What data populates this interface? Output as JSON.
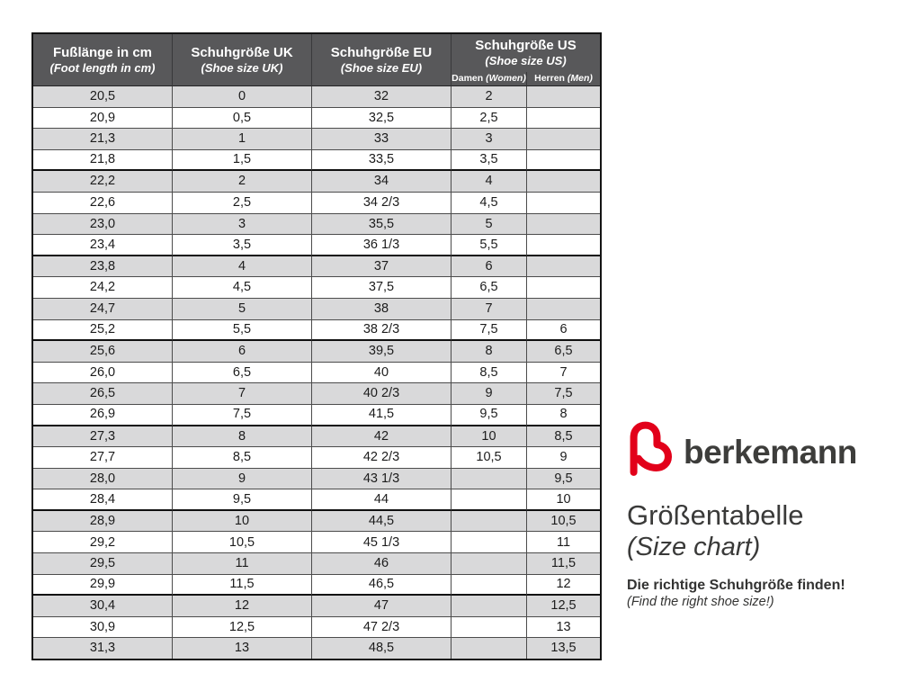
{
  "brand": {
    "name": "berkemann",
    "title_de": "Größentabelle",
    "title_en": "(Size chart)",
    "tagline_de": "Die richtige Schuhgröße finden!",
    "tagline_en": "(Find the right shoe size!)",
    "logo_icon": "berkemann-b-logo",
    "logo_color": "#e2001a"
  },
  "colors": {
    "header_bg": "#58585a",
    "header_text": "#ffffff",
    "row_alt_bg": "#d9d9da",
    "row_bg": "#ffffff",
    "border_outer": "#141414",
    "border_inner": "#4c4c4c",
    "text": "#1c1c1c",
    "brand_red": "#e2001a"
  },
  "table": {
    "headers": [
      {
        "de": "Fußlänge in cm",
        "en": "(Foot length in cm)"
      },
      {
        "de": "Schuhgröße UK",
        "en": "(Shoe size UK)"
      },
      {
        "de": "Schuhgröße EU",
        "en": "(Shoe size EU)"
      },
      {
        "de": "Schuhgröße US",
        "en": "(Shoe size US)"
      }
    ],
    "subheaders": [
      {
        "de": "Damen",
        "en": "(Women)"
      },
      {
        "de": "Herren",
        "en": "(Men)"
      }
    ],
    "columns": [
      "foot_length_cm",
      "uk",
      "eu",
      "us_women",
      "us_men"
    ],
    "rows": [
      [
        "20,5",
        "0",
        "32",
        "2",
        ""
      ],
      [
        "20,9",
        "0,5",
        "32,5",
        "2,5",
        ""
      ],
      [
        "21,3",
        "1",
        "33",
        "3",
        ""
      ],
      [
        "21,8",
        "1,5",
        "33,5",
        "3,5",
        ""
      ],
      [
        "22,2",
        "2",
        "34",
        "4",
        ""
      ],
      [
        "22,6",
        "2,5",
        "34 2/3",
        "4,5",
        ""
      ],
      [
        "23,0",
        "3",
        "35,5",
        "5",
        ""
      ],
      [
        "23,4",
        "3,5",
        "36 1/3",
        "5,5",
        ""
      ],
      [
        "23,8",
        "4",
        "37",
        "6",
        ""
      ],
      [
        "24,2",
        "4,5",
        "37,5",
        "6,5",
        ""
      ],
      [
        "24,7",
        "5",
        "38",
        "7",
        ""
      ],
      [
        "25,2",
        "5,5",
        "38 2/3",
        "7,5",
        "6"
      ],
      [
        "25,6",
        "6",
        "39,5",
        "8",
        "6,5"
      ],
      [
        "26,0",
        "6,5",
        "40",
        "8,5",
        "7"
      ],
      [
        "26,5",
        "7",
        "40 2/3",
        "9",
        "7,5"
      ],
      [
        "26,9",
        "7,5",
        "41,5",
        "9,5",
        "8"
      ],
      [
        "27,3",
        "8",
        "42",
        "10",
        "8,5"
      ],
      [
        "27,7",
        "8,5",
        "42 2/3",
        "10,5",
        "9"
      ],
      [
        "28,0",
        "9",
        "43 1/3",
        "",
        "9,5"
      ],
      [
        "28,4",
        "9,5",
        "44",
        "",
        "10"
      ],
      [
        "28,9",
        "10",
        "44,5",
        "",
        "10,5"
      ],
      [
        "29,2",
        "10,5",
        "45 1/3",
        "",
        "11"
      ],
      [
        "29,5",
        "11",
        "46",
        "",
        "11,5"
      ],
      [
        "29,9",
        "11,5",
        "46,5",
        "",
        "12"
      ],
      [
        "30,4",
        "12",
        "47",
        "",
        "12,5"
      ],
      [
        "30,9",
        "12,5",
        "47 2/3",
        "",
        "13"
      ],
      [
        "31,3",
        "13",
        "48,5",
        "",
        "13,5"
      ]
    ]
  }
}
